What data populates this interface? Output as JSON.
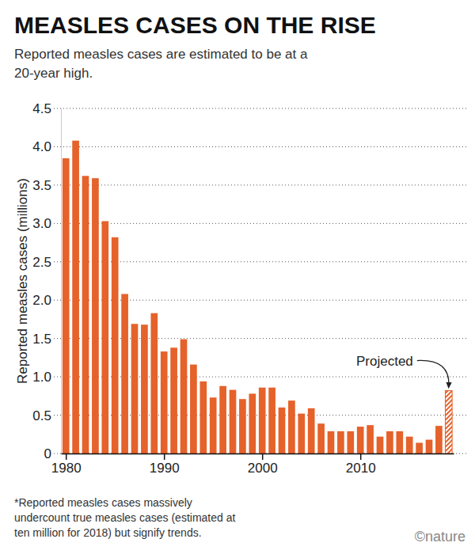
{
  "chart_data": {
    "type": "bar",
    "title": "MEASLES CASES ON THE RISE",
    "subtitle": "Reported measles cases are estimated to be at a 20-year high.",
    "y_label": "Reported measles cases (millions)",
    "x": [
      1980,
      1981,
      1982,
      1983,
      1984,
      1985,
      1986,
      1987,
      1988,
      1989,
      1990,
      1991,
      1992,
      1993,
      1994,
      1995,
      1996,
      1997,
      1998,
      1999,
      2000,
      2001,
      2002,
      2003,
      2004,
      2005,
      2006,
      2007,
      2008,
      2009,
      2010,
      2011,
      2012,
      2013,
      2014,
      2015,
      2016,
      2017,
      2018,
      2019
    ],
    "values": [
      3.85,
      4.08,
      3.62,
      3.59,
      3.03,
      2.82,
      2.08,
      1.69,
      1.68,
      1.83,
      1.33,
      1.38,
      1.49,
      1.16,
      0.94,
      0.73,
      0.88,
      0.83,
      0.71,
      0.78,
      0.86,
      0.86,
      0.6,
      0.69,
      0.52,
      0.59,
      0.39,
      0.29,
      0.29,
      0.29,
      0.35,
      0.37,
      0.22,
      0.29,
      0.29,
      0.22,
      0.14,
      0.18,
      0.36,
      0.82
    ],
    "color": "#e5622b",
    "xlim": [
      1979.5,
      2019.5
    ],
    "xticks": [
      1980,
      1990,
      2000,
      2010
    ],
    "ylim": [
      0,
      4.5
    ],
    "yticks": [
      0,
      0.5,
      {
        "value": 1,
        "label": "1.0"
      },
      1.5,
      {
        "value": 2,
        "label": "2.0"
      },
      2.5,
      {
        "value": 3,
        "label": "3.0"
      },
      3.5,
      {
        "value": 4,
        "label": "4.0"
      },
      4.5
    ],
    "grid": true,
    "annotations": [
      {
        "text": "Projected",
        "x": 2019
      }
    ],
    "footnote": "*Reported measles cases massively undercount true measles cases (estimated at ten million for 2018) but signify trends.",
    "credit": "©nature"
  }
}
